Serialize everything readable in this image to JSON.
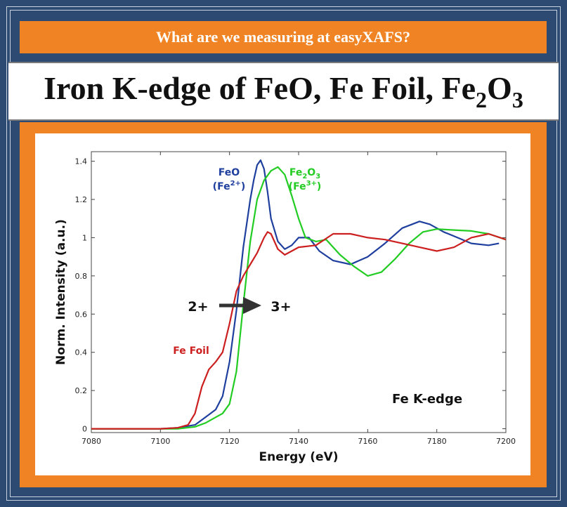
{
  "header": {
    "banner_text": "What are we measuring at easyXAFS?",
    "title_main": "Iron K-edge of FeO, Fe Foil, Fe",
    "title_sub1": "2",
    "title_mid": "O",
    "title_sub2": "3"
  },
  "colors": {
    "background": "#2d4a73",
    "orange": "#f08424",
    "feo": "#1f3f9e",
    "fe2o3": "#22cc22",
    "fefoil": "#cc1f1f"
  },
  "chart_data": {
    "type": "line",
    "xlabel": "Energy (eV)",
    "ylabel": "Norm. Intensity (a.u.)",
    "xlim": [
      7080,
      7200
    ],
    "ylim": [
      -0.02,
      1.45
    ],
    "x_ticks": [
      7080,
      7100,
      7120,
      7140,
      7160,
      7180,
      7200
    ],
    "y_ticks": [
      0,
      0.2,
      0.4,
      0.6,
      0.8,
      1,
      1.2,
      1.4
    ],
    "y_tick_labels": [
      "0",
      "0.2",
      "0.4",
      "0.6",
      "0.8",
      "1",
      "1.2",
      "1.4"
    ],
    "annotations": {
      "plot_label": "Fe K-edge",
      "arrow_from": "2+",
      "arrow_to": "3+"
    },
    "series": [
      {
        "name": "FeO",
        "ox_state": "(Fe",
        "ox_sup": "2+",
        "ox_close": ")",
        "color": "#1f3f9e",
        "x": [
          7080,
          7090,
          7100,
          7105,
          7110,
          7113,
          7116,
          7118,
          7120,
          7122,
          7124,
          7126,
          7127,
          7128,
          7129,
          7130,
          7131,
          7132,
          7134,
          7136,
          7138,
          7140,
          7143,
          7146,
          7150,
          7155,
          7160,
          7165,
          7170,
          7175,
          7178,
          7182,
          7186,
          7190,
          7195,
          7198
        ],
        "y": [
          0.0,
          0.0,
          0.0,
          0.005,
          0.02,
          0.06,
          0.1,
          0.17,
          0.35,
          0.62,
          0.95,
          1.2,
          1.3,
          1.38,
          1.405,
          1.36,
          1.24,
          1.1,
          0.98,
          0.94,
          0.96,
          1.0,
          1.0,
          0.93,
          0.88,
          0.86,
          0.9,
          0.97,
          1.05,
          1.085,
          1.07,
          1.03,
          1.0,
          0.97,
          0.96,
          0.97
        ]
      },
      {
        "name": "Fe",
        "name_sub1": "2",
        "name_mid": "O",
        "name_sub2": "3",
        "ox_state": "(Fe",
        "ox_sup": "3+",
        "ox_close": ")",
        "color": "#22cc22",
        "x": [
          7080,
          7090,
          7100,
          7105,
          7110,
          7113,
          7116,
          7118,
          7120,
          7122,
          7124,
          7126,
          7128,
          7130,
          7132,
          7134,
          7136,
          7138,
          7140,
          7142,
          7145,
          7148,
          7152,
          7156,
          7160,
          7164,
          7168,
          7172,
          7176,
          7180,
          7185,
          7190,
          7195,
          7200
        ],
        "y": [
          0.0,
          0.0,
          0.0,
          0.0,
          0.01,
          0.03,
          0.06,
          0.08,
          0.13,
          0.3,
          0.65,
          0.98,
          1.2,
          1.3,
          1.35,
          1.37,
          1.33,
          1.22,
          1.1,
          1.0,
          0.98,
          0.99,
          0.91,
          0.85,
          0.8,
          0.82,
          0.89,
          0.97,
          1.03,
          1.045,
          1.04,
          1.035,
          1.02,
          0.99
        ]
      },
      {
        "name": "Fe Foil",
        "color": "#cc1f1f",
        "x": [
          7080,
          7090,
          7100,
          7105,
          7108,
          7110,
          7112,
          7114,
          7116,
          7118,
          7120,
          7122,
          7124,
          7126,
          7128,
          7130,
          7131,
          7132,
          7134,
          7136,
          7138,
          7140,
          7145,
          7150,
          7155,
          7160,
          7165,
          7170,
          7175,
          7180,
          7185,
          7190,
          7195,
          7200
        ],
        "y": [
          0.0,
          0.0,
          0.0,
          0.005,
          0.02,
          0.08,
          0.22,
          0.31,
          0.35,
          0.4,
          0.55,
          0.72,
          0.8,
          0.86,
          0.92,
          1.0,
          1.03,
          1.02,
          0.94,
          0.91,
          0.93,
          0.95,
          0.96,
          1.02,
          1.02,
          1.0,
          0.99,
          0.97,
          0.95,
          0.93,
          0.95,
          1.0,
          1.02,
          0.99
        ]
      }
    ]
  }
}
